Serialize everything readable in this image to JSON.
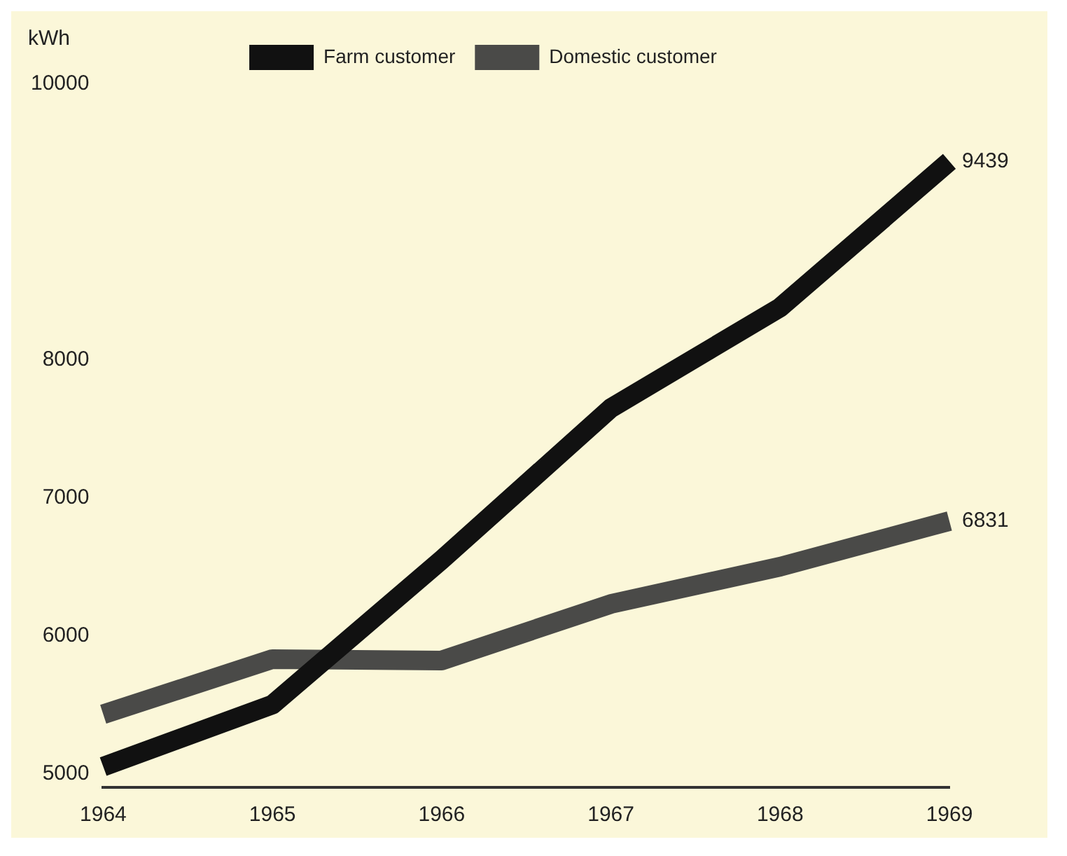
{
  "chart_data": {
    "type": "line",
    "ylabel": "kWh",
    "categories": [
      "1964",
      "1965",
      "1966",
      "1967",
      "1968",
      "1969"
    ],
    "series": [
      {
        "name": "Farm customer",
        "color": "#111111",
        "values": [
          5050,
          5500,
          6550,
          7650,
          8380,
          9439
        ],
        "value_labels": [
          null,
          null,
          null,
          null,
          null,
          "9439"
        ]
      },
      {
        "name": "Domestic customer",
        "color": "#4a4a48",
        "values": [
          5430,
          5830,
          5820,
          6230,
          6500,
          6831
        ],
        "value_labels": [
          null,
          null,
          null,
          null,
          null,
          "6831"
        ]
      }
    ],
    "ylim": [
      4900,
      10000
    ],
    "yticks": [
      5000,
      6000,
      7000,
      8000,
      10000
    ],
    "grid": false,
    "legend": "top",
    "marker": "none",
    "line_style": "solid"
  }
}
